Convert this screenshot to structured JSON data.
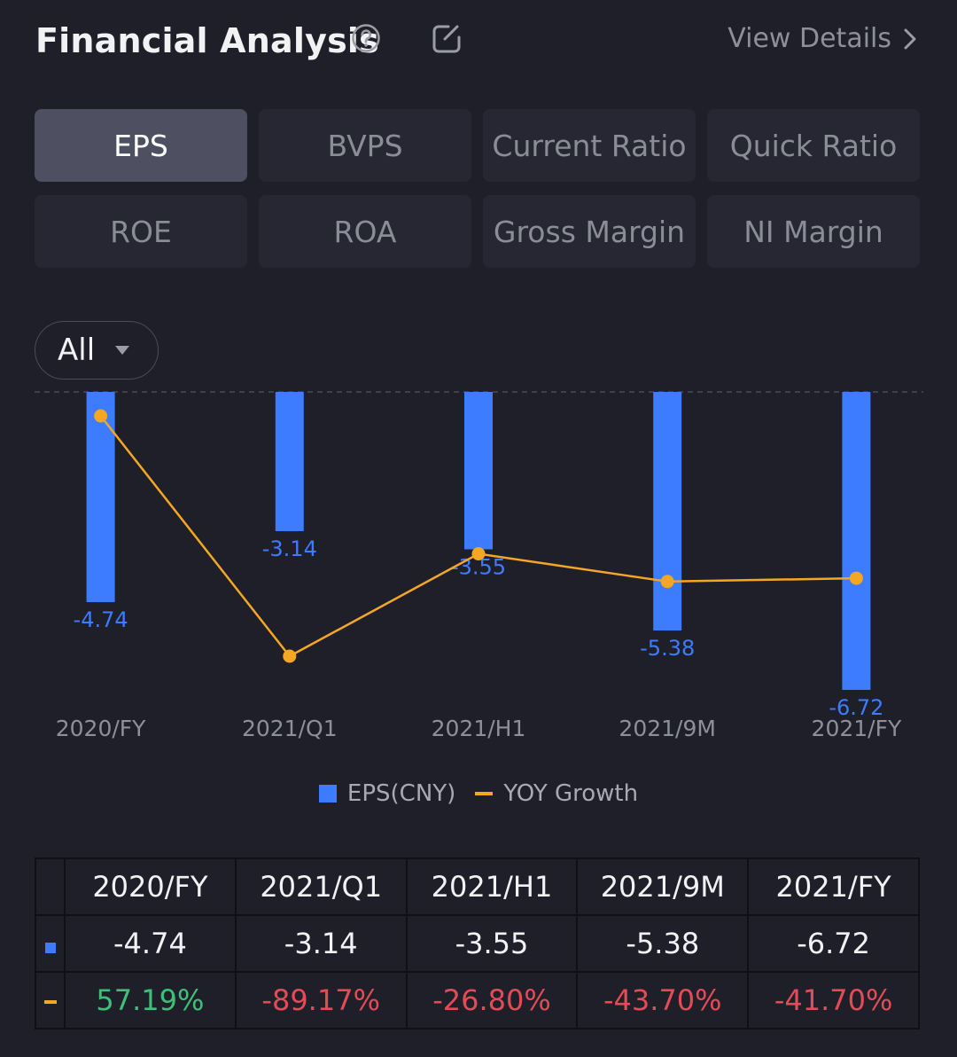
{
  "header": {
    "title": "Financial Analysis",
    "view_details": "View Details"
  },
  "icons": {
    "help": "help-circle-icon",
    "edit": "edit-icon",
    "chevron": "chevron-right-icon"
  },
  "tabs": [
    "EPS",
    "BVPS",
    "Current Ratio",
    "Quick Ratio",
    "ROE",
    "ROA",
    "Gross Margin",
    "NI Margin"
  ],
  "active_tab": "EPS",
  "filter": {
    "label": "All"
  },
  "colors": {
    "bar": "#3d7bff",
    "line": "#f5a623",
    "positive": "#3fc07a",
    "negative": "#e34b57"
  },
  "chart_data": {
    "type": "bar",
    "categories": [
      "2020/FY",
      "2021/Q1",
      "2021/H1",
      "2021/9M",
      "2021/FY"
    ],
    "series": [
      {
        "name": "EPS(CNY)",
        "type": "bar",
        "values": [
          -4.74,
          -3.14,
          -3.55,
          -5.38,
          -6.72
        ]
      },
      {
        "name": "YOY Growth",
        "type": "line",
        "values": [
          57.19,
          -89.17,
          -26.8,
          -43.7,
          -41.7
        ]
      }
    ],
    "data_labels": [
      "-4.74",
      "-3.14",
      "-3.55",
      "-5.38",
      "-6.72"
    ],
    "ylim": [
      -6.72,
      0
    ]
  },
  "legend": {
    "bar_label": "EPS(CNY)",
    "line_label": "YOY Growth"
  },
  "table": {
    "headers": [
      "2020/FY",
      "2021/Q1",
      "2021/H1",
      "2021/9M",
      "2021/FY"
    ],
    "eps_row": [
      "-4.74",
      "-3.14",
      "-3.55",
      "-5.38",
      "-6.72"
    ],
    "growth_row": [
      "57.19%",
      "-89.17%",
      "-26.80%",
      "-43.70%",
      "-41.70%"
    ]
  }
}
